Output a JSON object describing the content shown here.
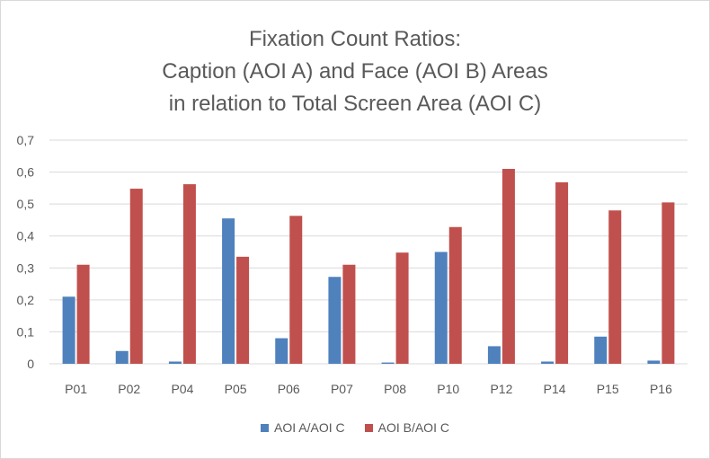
{
  "chart_data": {
    "type": "bar",
    "title_lines": [
      "Fixation Count Ratios:",
      "Caption (AOI A) and Face (AOI B) Areas",
      "in relation to Total Screen Area (AOI C)"
    ],
    "xlabel": "",
    "ylabel": "",
    "ylim": [
      0,
      0.7
    ],
    "y_ticks": [
      "0",
      "0,1",
      "0,2",
      "0,3",
      "0,4",
      "0,5",
      "0,6",
      "0,7"
    ],
    "y_tick_values": [
      0,
      0.1,
      0.2,
      0.3,
      0.4,
      0.5,
      0.6,
      0.7
    ],
    "grid": true,
    "legend_position": "bottom",
    "categories": [
      "P01",
      "P02",
      "P04",
      "P05",
      "P06",
      "P07",
      "P08",
      "P10",
      "P12",
      "P14",
      "P15",
      "P16"
    ],
    "series": [
      {
        "name": "AOI A/AOI C",
        "color": "#4f81bd",
        "values": [
          0.21,
          0.04,
          0.007,
          0.455,
          0.08,
          0.272,
          0.004,
          0.35,
          0.055,
          0.007,
          0.085,
          0.01
        ]
      },
      {
        "name": "AOI B/AOI C",
        "color": "#c0504d",
        "values": [
          0.31,
          0.548,
          0.562,
          0.335,
          0.463,
          0.31,
          0.348,
          0.428,
          0.61,
          0.568,
          0.48,
          0.505
        ]
      }
    ]
  }
}
